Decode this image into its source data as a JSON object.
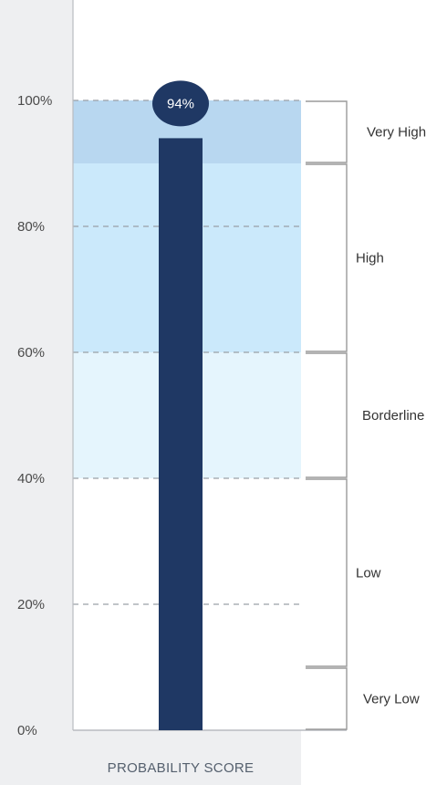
{
  "chart_data": {
    "type": "bar",
    "categories": [
      "PROBABILITY SCORE"
    ],
    "values": [
      94
    ],
    "value_label": "94%",
    "xlabel": "PROBABILITY SCORE",
    "ylabel": "",
    "ylim": [
      0,
      100
    ],
    "y_ticks": [
      0,
      20,
      40,
      60,
      80,
      100
    ],
    "y_tick_labels": [
      "0%",
      "20%",
      "40%",
      "60%",
      "80%",
      "100%"
    ],
    "grid": true,
    "bands": [
      {
        "label": "Very High",
        "from": 90,
        "to": 100,
        "color": "#b8d7f0"
      },
      {
        "label": "High",
        "from": 60,
        "to": 90,
        "color": "#cbe9fb"
      },
      {
        "label": "Borderline",
        "from": 40,
        "to": 60,
        "color": "#e5f5fd"
      },
      {
        "label": "Low",
        "from": 10,
        "to": 40,
        "color": "#ffffff"
      },
      {
        "label": "Very Low",
        "from": 0,
        "to": 10,
        "color": "#ffffff"
      }
    ],
    "colors": {
      "bar": "#1f3864",
      "background_panel": "#eeeff1",
      "grid": "#9aa0a6",
      "bracket": "#9a9a9a"
    }
  }
}
